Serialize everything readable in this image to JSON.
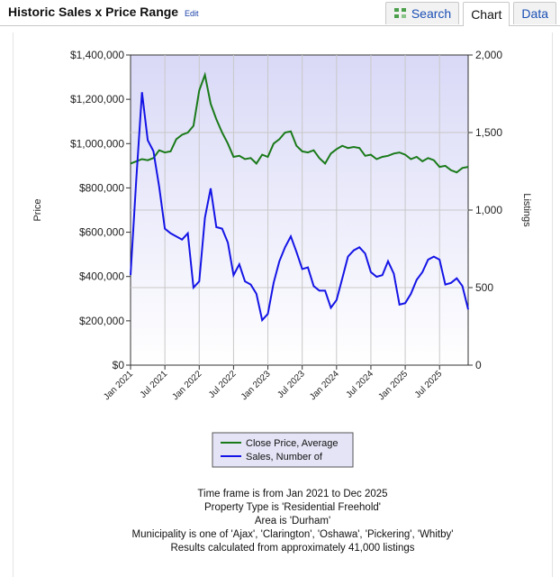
{
  "header": {
    "title": "Historic Sales x Price Range",
    "edit_label": "Edit",
    "tabs": [
      {
        "label": "Search",
        "icon": "search-grid-icon",
        "active": false
      },
      {
        "label": "Chart",
        "active": true
      },
      {
        "label": "Data",
        "active": false
      }
    ]
  },
  "colors": {
    "plot_bg_top": "#d9d9f7",
    "plot_bg_bottom": "#ffffff",
    "price_line": "#1a7a1a",
    "sales_line": "#1414e6"
  },
  "chart_data": {
    "type": "line",
    "title": "",
    "xlabel": "",
    "ylabel": "Price",
    "y2label": "Listings",
    "x_ticks": [
      "Jan 2021",
      "Jul 2021",
      "Jan 2022",
      "Jul 2022",
      "Jan 2023",
      "Jul 2023",
      "Jan 2024",
      "Jul 2024",
      "Jan 2025",
      "Jul 2025"
    ],
    "ylim": [
      0,
      1400000
    ],
    "y_ticks": [
      "$0",
      "$200,000",
      "$400,000",
      "$600,000",
      "$800,000",
      "$1,000,000",
      "$1,200,000",
      "$1,400,000"
    ],
    "y2lim": [
      0,
      2000
    ],
    "y2_ticks": [
      "0",
      "500",
      "1,000",
      "1,500",
      "2,000"
    ],
    "legend": {
      "placement": "bottom-center",
      "entries": [
        "Close Price, Average",
        "Sales, Number of"
      ]
    },
    "months": 60,
    "series": [
      {
        "name": "Close Price, Average",
        "axis": "left",
        "values": [
          910000,
          920000,
          930000,
          925000,
          935000,
          970000,
          960000,
          965000,
          1020000,
          1040000,
          1050000,
          1080000,
          1240000,
          1310000,
          1180000,
          1110000,
          1050000,
          1000000,
          940000,
          945000,
          930000,
          935000,
          910000,
          950000,
          940000,
          1000000,
          1020000,
          1050000,
          1055000,
          990000,
          965000,
          960000,
          970000,
          935000,
          910000,
          955000,
          975000,
          990000,
          980000,
          985000,
          980000,
          945000,
          950000,
          930000,
          940000,
          945000,
          955000,
          960000,
          950000,
          930000,
          940000,
          920000,
          935000,
          925000,
          895000,
          900000,
          880000,
          870000,
          890000,
          895000
        ]
      },
      {
        "name": "Sales, Number of",
        "axis": "right",
        "values": [
          580,
          1200,
          1760,
          1450,
          1380,
          1150,
          880,
          850,
          830,
          810,
          850,
          500,
          540,
          950,
          1140,
          890,
          880,
          790,
          580,
          650,
          540,
          520,
          460,
          290,
          330,
          530,
          670,
          760,
          830,
          730,
          620,
          630,
          510,
          480,
          480,
          370,
          420,
          560,
          700,
          740,
          760,
          720,
          600,
          570,
          580,
          670,
          590,
          390,
          400,
          460,
          550,
          600,
          680,
          700,
          680,
          520,
          530,
          560,
          510,
          360
        ]
      }
    ]
  },
  "info": {
    "line1": "Time frame is from Jan 2021 to Dec 2025",
    "line2": "Property Type is 'Residential Freehold'",
    "line3": "Area is 'Durham'",
    "line4": "Municipality is one of 'Ajax', 'Clarington', 'Oshawa', 'Pickering', 'Whitby'",
    "line5": "Results calculated from approximately 41,000 listings"
  }
}
